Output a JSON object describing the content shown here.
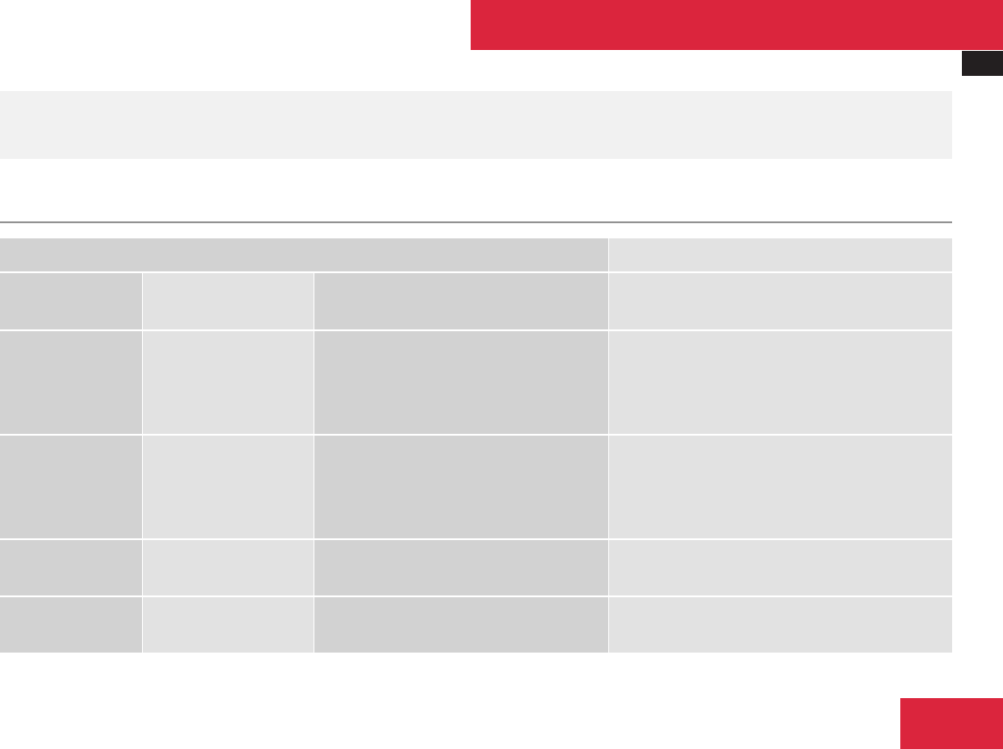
{
  "colors": {
    "accent_red": "#db253d",
    "tab_black": "#231f20",
    "band_gray": "#f1f1f1",
    "rule_gray": "#929292",
    "cell_dark": "#d2d2d2",
    "cell_light": "#e2e2e2"
  },
  "table": {
    "rows": 5,
    "columns": 4
  }
}
